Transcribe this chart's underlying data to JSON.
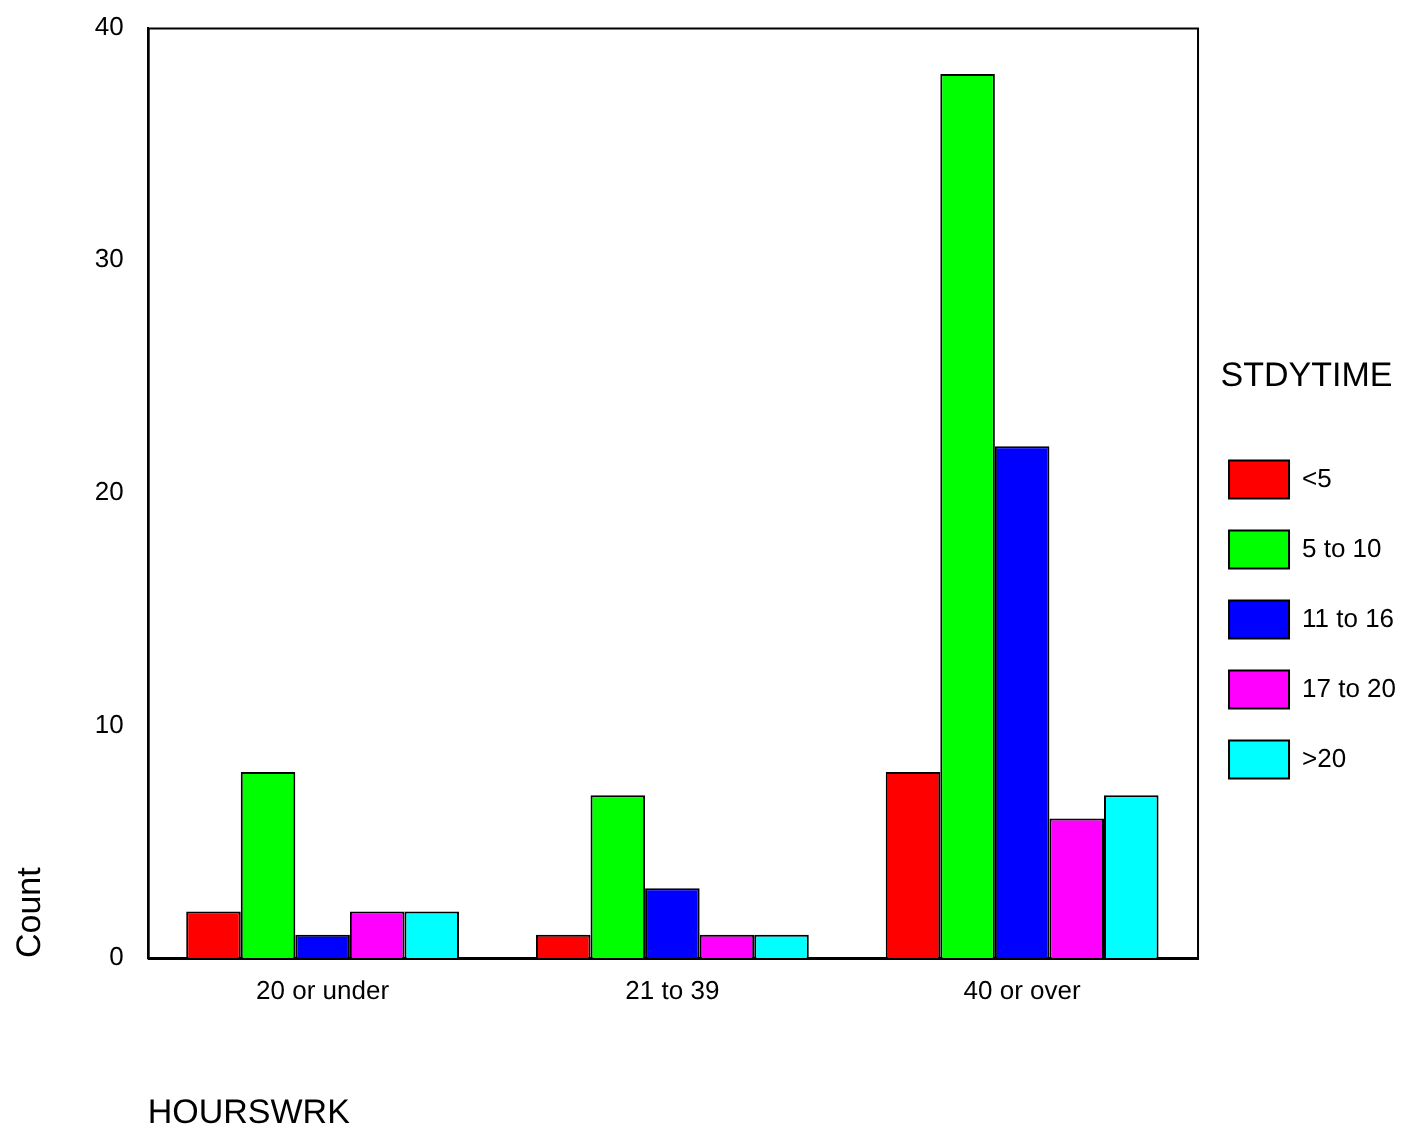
{
  "chart_data": {
    "type": "bar",
    "xlabel": "HOURSWRK",
    "ylabel": "Count",
    "legend_title": "STDYTIME",
    "legend": "right",
    "categories": [
      "20 or under",
      "21 to 39",
      "40 or over"
    ],
    "series": [
      {
        "name": "<5",
        "color": "#ff0000",
        "values": [
          2,
          1,
          8
        ]
      },
      {
        "name": "5 to 10",
        "color": "#00ff00",
        "values": [
          8,
          7,
          38
        ]
      },
      {
        "name": "11 to 16",
        "color": "#0000ff",
        "values": [
          1,
          3,
          22
        ]
      },
      {
        "name": "17 to 20",
        "color": "#ff00ff",
        "values": [
          2,
          1,
          6
        ]
      },
      {
        "name": ">20",
        "color": "#00ffff",
        "values": [
          2,
          1,
          7
        ]
      }
    ],
    "ylim": [
      0,
      40
    ],
    "yticks": [
      0,
      10,
      20,
      30,
      40
    ],
    "grid": false
  }
}
